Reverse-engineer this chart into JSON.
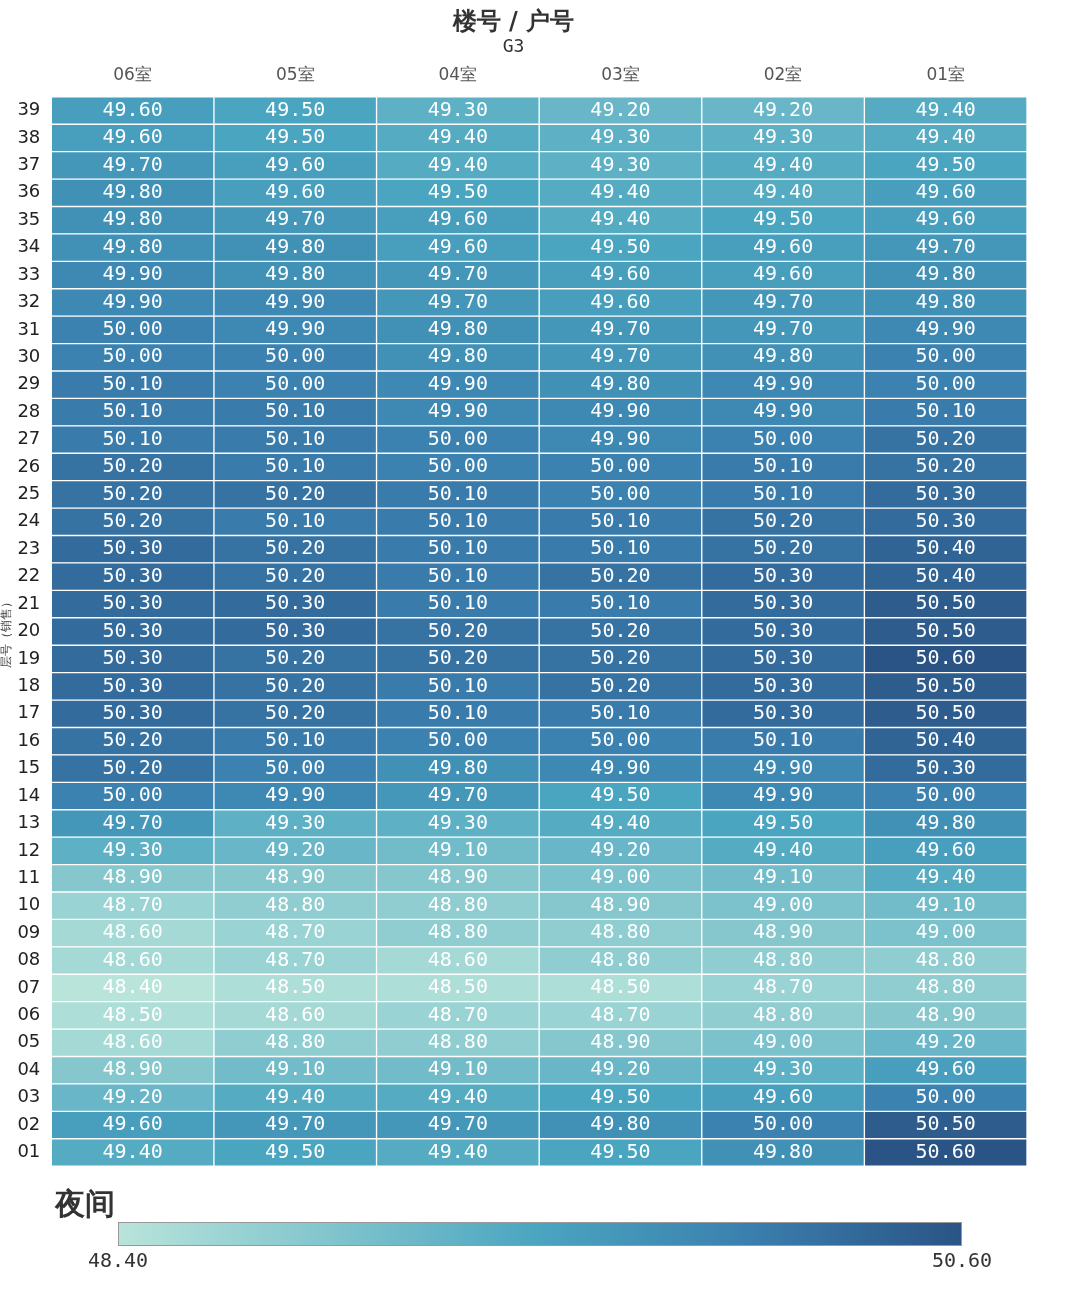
{
  "chart_data": {
    "type": "heatmap",
    "title": "楼号 / 户号",
    "subtitle": "G3",
    "ylabel": "层号（销售）",
    "clabel": "夜间",
    "categories": [
      "06室",
      "05室",
      "04室",
      "03室",
      "02室",
      "01室"
    ],
    "y_categories": [
      "39",
      "38",
      "37",
      "36",
      "35",
      "34",
      "33",
      "32",
      "31",
      "30",
      "29",
      "28",
      "27",
      "26",
      "25",
      "24",
      "23",
      "22",
      "21",
      "20",
      "19",
      "18",
      "17",
      "16",
      "15",
      "14",
      "13",
      "12",
      "11",
      "10",
      "09",
      "08",
      "07",
      "06",
      "05",
      "04",
      "03",
      "02",
      "01"
    ],
    "cells": [
      [
        49.6,
        49.5,
        49.3,
        49.2,
        49.2,
        49.4
      ],
      [
        49.6,
        49.5,
        49.4,
        49.3,
        49.3,
        49.4
      ],
      [
        49.7,
        49.6,
        49.4,
        49.3,
        49.4,
        49.5
      ],
      [
        49.8,
        49.6,
        49.5,
        49.4,
        49.4,
        49.6
      ],
      [
        49.8,
        49.7,
        49.6,
        49.4,
        49.5,
        49.6
      ],
      [
        49.8,
        49.8,
        49.6,
        49.5,
        49.6,
        49.7
      ],
      [
        49.9,
        49.8,
        49.7,
        49.6,
        49.6,
        49.8
      ],
      [
        49.9,
        49.9,
        49.7,
        49.6,
        49.7,
        49.8
      ],
      [
        50.0,
        49.9,
        49.8,
        49.7,
        49.7,
        49.9
      ],
      [
        50.0,
        50.0,
        49.8,
        49.7,
        49.8,
        50.0
      ],
      [
        50.1,
        50.0,
        49.9,
        49.8,
        49.9,
        50.0
      ],
      [
        50.1,
        50.1,
        49.9,
        49.9,
        49.9,
        50.1
      ],
      [
        50.1,
        50.1,
        50.0,
        49.9,
        50.0,
        50.2
      ],
      [
        50.2,
        50.1,
        50.0,
        50.0,
        50.1,
        50.2
      ],
      [
        50.2,
        50.2,
        50.1,
        50.0,
        50.1,
        50.3
      ],
      [
        50.2,
        50.1,
        50.1,
        50.1,
        50.2,
        50.3
      ],
      [
        50.3,
        50.2,
        50.1,
        50.1,
        50.2,
        50.4
      ],
      [
        50.3,
        50.2,
        50.1,
        50.2,
        50.3,
        50.4
      ],
      [
        50.3,
        50.3,
        50.1,
        50.1,
        50.3,
        50.5
      ],
      [
        50.3,
        50.3,
        50.2,
        50.2,
        50.3,
        50.5
      ],
      [
        50.3,
        50.2,
        50.2,
        50.2,
        50.3,
        50.6
      ],
      [
        50.3,
        50.2,
        50.1,
        50.2,
        50.3,
        50.5
      ],
      [
        50.3,
        50.2,
        50.1,
        50.1,
        50.3,
        50.5
      ],
      [
        50.2,
        50.1,
        50.0,
        50.0,
        50.1,
        50.4
      ],
      [
        50.2,
        50.0,
        49.8,
        49.9,
        49.9,
        50.3
      ],
      [
        50.0,
        49.9,
        49.7,
        49.5,
        49.9,
        50.0
      ],
      [
        49.7,
        49.3,
        49.3,
        49.4,
        49.5,
        49.8
      ],
      [
        49.3,
        49.2,
        49.1,
        49.2,
        49.4,
        49.6
      ],
      [
        48.9,
        48.9,
        48.9,
        49.0,
        49.1,
        49.4
      ],
      [
        48.7,
        48.8,
        48.8,
        48.9,
        49.0,
        49.1
      ],
      [
        48.6,
        48.7,
        48.8,
        48.8,
        48.9,
        49.0
      ],
      [
        48.6,
        48.7,
        48.6,
        48.8,
        48.8,
        48.8
      ],
      [
        48.4,
        48.5,
        48.5,
        48.5,
        48.7,
        48.8
      ],
      [
        48.5,
        48.6,
        48.7,
        48.7,
        48.8,
        48.9
      ],
      [
        48.6,
        48.8,
        48.8,
        48.9,
        49.0,
        49.2
      ],
      [
        48.9,
        49.1,
        49.1,
        49.2,
        49.3,
        49.6
      ],
      [
        49.2,
        49.4,
        49.4,
        49.5,
        49.6,
        50.0
      ],
      [
        49.6,
        49.7,
        49.7,
        49.8,
        50.0,
        50.5
      ],
      [
        49.4,
        49.5,
        49.4,
        49.5,
        49.8,
        50.6
      ]
    ],
    "cell_labels": [
      [
        "49.60",
        "49.50",
        "49.30",
        "49.20",
        "49.20",
        "49.40"
      ],
      [
        "49.60",
        "49.50",
        "49.40",
        "49.30",
        "49.30",
        "49.40"
      ],
      [
        "49.70",
        "49.60",
        "49.40",
        "49.30",
        "49.40",
        "49.50"
      ],
      [
        "49.80",
        "49.60",
        "49.50",
        "49.40",
        "49.40",
        "49.60"
      ],
      [
        "49.80",
        "49.70",
        "49.60",
        "49.40",
        "49.50",
        "49.60"
      ],
      [
        "49.80",
        "49.80",
        "49.60",
        "49.50",
        "49.60",
        "49.70"
      ],
      [
        "49.90",
        "49.80",
        "49.70",
        "49.60",
        "49.60",
        "49.80"
      ],
      [
        "49.90",
        "49.90",
        "49.70",
        "49.60",
        "49.70",
        "49.80"
      ],
      [
        "50.00",
        "49.90",
        "49.80",
        "49.70",
        "49.70",
        "49.90"
      ],
      [
        "50.00",
        "50.00",
        "49.80",
        "49.70",
        "49.80",
        "50.00"
      ],
      [
        "50.10",
        "50.00",
        "49.90",
        "49.80",
        "49.90",
        "50.00"
      ],
      [
        "50.10",
        "50.10",
        "49.90",
        "49.90",
        "49.90",
        "50.10"
      ],
      [
        "50.10",
        "50.10",
        "50.00",
        "49.90",
        "50.00",
        "50.20"
      ],
      [
        "50.20",
        "50.10",
        "50.00",
        "50.00",
        "50.10",
        "50.20"
      ],
      [
        "50.20",
        "50.20",
        "50.10",
        "50.00",
        "50.10",
        "50.30"
      ],
      [
        "50.20",
        "50.10",
        "50.10",
        "50.10",
        "50.20",
        "50.30"
      ],
      [
        "50.30",
        "50.20",
        "50.10",
        "50.10",
        "50.20",
        "50.40"
      ],
      [
        "50.30",
        "50.20",
        "50.10",
        "50.20",
        "50.30",
        "50.40"
      ],
      [
        "50.30",
        "50.30",
        "50.10",
        "50.10",
        "50.30",
        "50.50"
      ],
      [
        "50.30",
        "50.30",
        "50.20",
        "50.20",
        "50.30",
        "50.50"
      ],
      [
        "50.30",
        "50.20",
        "50.20",
        "50.20",
        "50.30",
        "50.60"
      ],
      [
        "50.30",
        "50.20",
        "50.10",
        "50.20",
        "50.30",
        "50.50"
      ],
      [
        "50.30",
        "50.20",
        "50.10",
        "50.10",
        "50.30",
        "50.50"
      ],
      [
        "50.20",
        "50.10",
        "50.00",
        "50.00",
        "50.10",
        "50.40"
      ],
      [
        "50.20",
        "50.00",
        "49.80",
        "49.90",
        "49.90",
        "50.30"
      ],
      [
        "50.00",
        "49.90",
        "49.70",
        "49.50",
        "49.90",
        "50.00"
      ],
      [
        "49.70",
        "49.30",
        "49.30",
        "49.40",
        "49.50",
        "49.80"
      ],
      [
        "49.30",
        "49.20",
        "49.10",
        "49.20",
        "49.40",
        "49.60"
      ],
      [
        "48.90",
        "48.90",
        "48.90",
        "49.00",
        "49.10",
        "49.40"
      ],
      [
        "48.70",
        "48.80",
        "48.80",
        "48.90",
        "49.00",
        "49.10"
      ],
      [
        "48.60",
        "48.70",
        "48.80",
        "48.80",
        "48.90",
        "49.00"
      ],
      [
        "48.60",
        "48.70",
        "48.60",
        "48.80",
        "48.80",
        "48.80"
      ],
      [
        "48.40",
        "48.50",
        "48.50",
        "48.50",
        "48.70",
        "48.80"
      ],
      [
        "48.50",
        "48.60",
        "48.70",
        "48.70",
        "48.80",
        "48.90"
      ],
      [
        "48.60",
        "48.80",
        "48.80",
        "48.90",
        "49.00",
        "49.20"
      ],
      [
        "48.90",
        "49.10",
        "49.10",
        "49.20",
        "49.30",
        "49.60"
      ],
      [
        "49.20",
        "49.40",
        "49.40",
        "49.50",
        "49.60",
        "50.00"
      ],
      [
        "49.60",
        "49.70",
        "49.70",
        "49.80",
        "50.00",
        "50.50"
      ],
      [
        "49.40",
        "49.50",
        "49.40",
        "49.50",
        "49.80",
        "50.60"
      ]
    ],
    "clim": [
      48.4,
      50.6
    ],
    "cticks": [
      {
        "value": 48.4,
        "label": "48.40"
      },
      {
        "value": 50.6,
        "label": "50.60"
      }
    ]
  }
}
